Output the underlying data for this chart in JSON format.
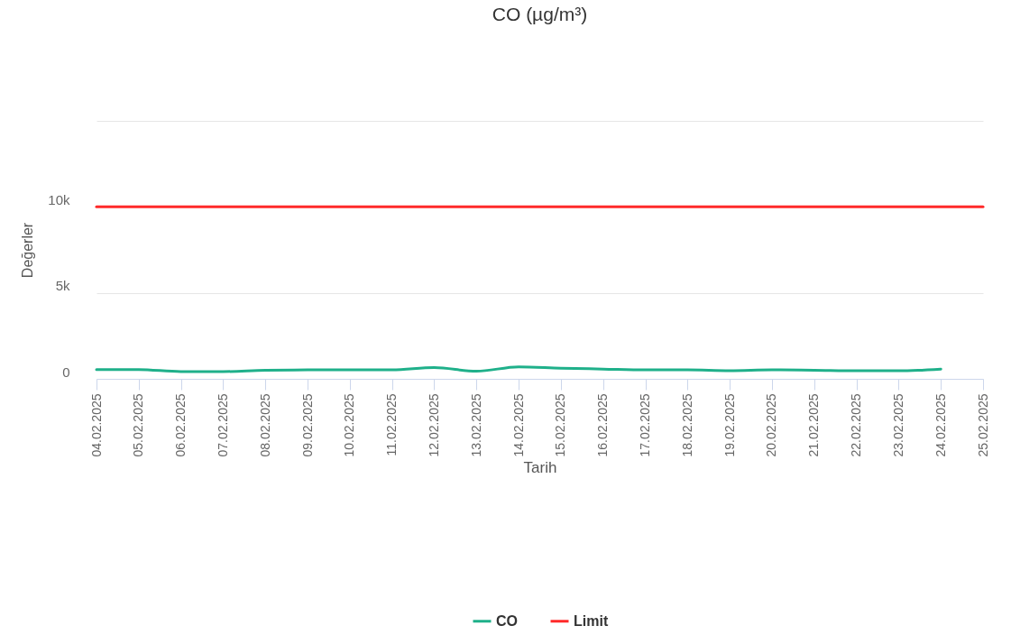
{
  "chart_data": {
    "type": "line",
    "title": "CO (µg/m³)",
    "xlabel": "Tarih",
    "ylabel": "Değerler",
    "categories": [
      "04.02.2025",
      "05.02.2025",
      "06.02.2025",
      "07.02.2025",
      "08.02.2025",
      "09.02.2025",
      "10.02.2025",
      "11.02.2025",
      "12.02.2025",
      "13.02.2025",
      "14.02.2025",
      "15.02.2025",
      "16.02.2025",
      "17.02.2025",
      "18.02.2025",
      "19.02.2025",
      "20.02.2025",
      "21.02.2025",
      "22.02.2025",
      "23.02.2025",
      "24.02.2025",
      "25.02.2025"
    ],
    "series": [
      {
        "name": "CO",
        "color": "#1fb08a",
        "values": [
          540,
          540,
          420,
          420,
          500,
          520,
          520,
          520,
          650,
          440,
          700,
          620,
          570,
          520,
          520,
          470,
          520,
          500,
          470,
          470,
          570,
          null
        ]
      },
      {
        "name": "Limit",
        "color": "#ff2a2a",
        "values": [
          10000,
          10000,
          10000,
          10000,
          10000,
          10000,
          10000,
          10000,
          10000,
          10000,
          10000,
          10000,
          10000,
          10000,
          10000,
          10000,
          10000,
          10000,
          10000,
          10000,
          10000,
          10000
        ]
      }
    ],
    "ylim": [
      0,
      15000
    ],
    "yticks": [
      0,
      {
        "value": 5000,
        "label": "5k"
      },
      {
        "value": 10000,
        "label": "10k"
      },
      {
        "value": 15000,
        "label": null
      }
    ],
    "grid": "y",
    "legend": "bottom"
  }
}
